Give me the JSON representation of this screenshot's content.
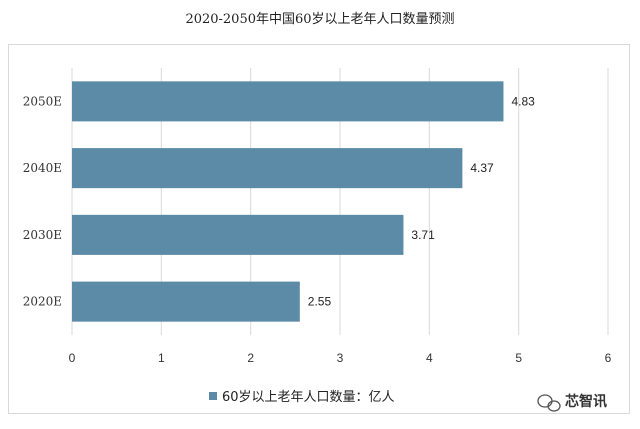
{
  "chart_data": {
    "type": "bar",
    "orientation": "horizontal",
    "title": "2020-2050年中国60岁以上老年人口数量预测",
    "categories": [
      "2050E",
      "2040E",
      "2030E",
      "2020E"
    ],
    "series": [
      {
        "name": "60岁以上老年人口数量：亿人",
        "values": [
          4.83,
          4.37,
          3.71,
          2.55
        ],
        "color": "#5b8ba6"
      }
    ],
    "value_labels": [
      "4.83",
      "4.37",
      "3.71",
      "2.55"
    ],
    "xlim": [
      0,
      6
    ],
    "xticks": [
      "0",
      "1",
      "2",
      "3",
      "4",
      "5",
      "6"
    ],
    "grid": true,
    "legend_position": "bottom-center"
  },
  "watermark": {
    "text": "芯智讯",
    "icon": "wechat-icon"
  }
}
